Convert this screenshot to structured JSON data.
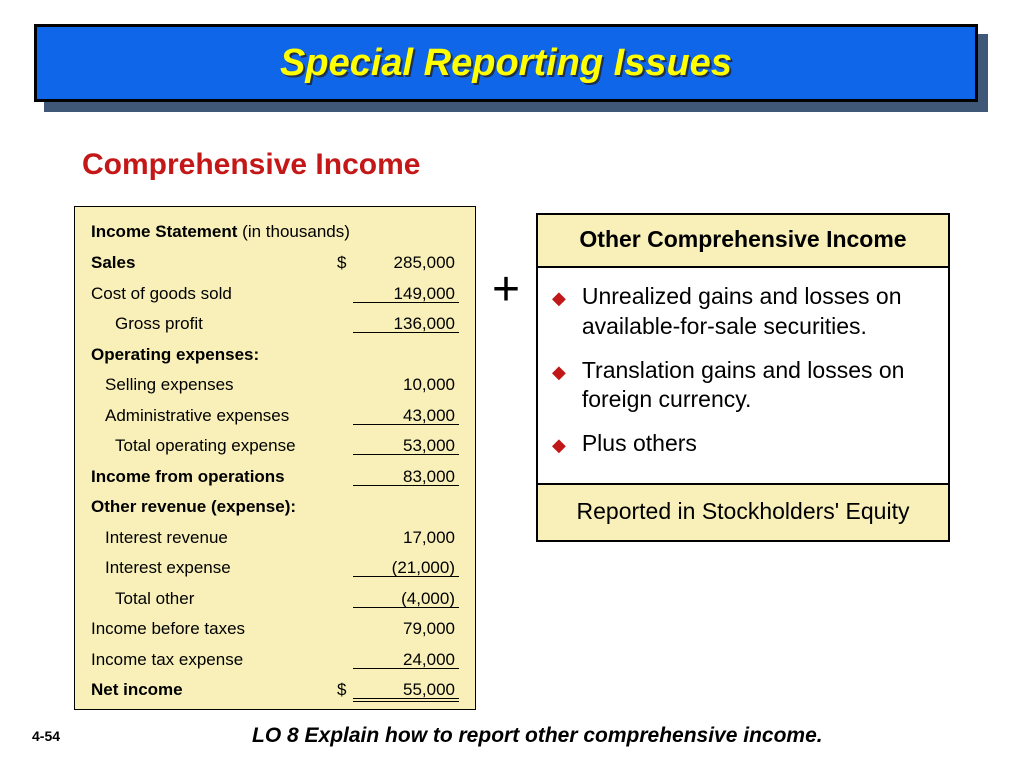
{
  "title": "Special Reporting Issues",
  "subtitle": "Comprehensive Income",
  "page_num": "4-54",
  "lo": "LO 8  Explain how to report other comprehensive income.",
  "plus": "+",
  "is": {
    "title_b": "Income Statement",
    "title_rest": " (in thousands)",
    "rows": [
      {
        "label": "Sales",
        "value": "285,000",
        "bold": true,
        "indent": 0,
        "dollar": true,
        "uline": false,
        "dline": false
      },
      {
        "label": "Cost of goods sold",
        "value": "149,000",
        "bold": false,
        "indent": 0,
        "dollar": false,
        "uline": true,
        "dline": false
      },
      {
        "label": "Gross profit",
        "value": "136,000",
        "bold": false,
        "indent": 2,
        "dollar": false,
        "uline": true,
        "dline": false
      },
      {
        "label": "Operating expenses:",
        "value": "",
        "bold": true,
        "indent": 0,
        "dollar": false,
        "uline": false,
        "dline": false
      },
      {
        "label": "Selling expenses",
        "value": "10,000",
        "bold": false,
        "indent": 1,
        "dollar": false,
        "uline": false,
        "dline": false
      },
      {
        "label": "Administrative expenses",
        "value": "43,000",
        "bold": false,
        "indent": 1,
        "dollar": false,
        "uline": true,
        "dline": false
      },
      {
        "label": "Total operating expense",
        "value": "53,000",
        "bold": false,
        "indent": 2,
        "dollar": false,
        "uline": true,
        "dline": false
      },
      {
        "label": "Income from operations",
        "value": "83,000",
        "bold": true,
        "indent": 0,
        "dollar": false,
        "uline": true,
        "dline": false
      },
      {
        "label": "Other revenue (expense):",
        "value": "",
        "bold": true,
        "indent": 0,
        "dollar": false,
        "uline": false,
        "dline": false
      },
      {
        "label": "Interest revenue",
        "value": "17,000",
        "bold": false,
        "indent": 1,
        "dollar": false,
        "uline": false,
        "dline": false
      },
      {
        "label": "Interest expense",
        "value": "(21,000)",
        "bold": false,
        "indent": 1,
        "dollar": false,
        "uline": true,
        "dline": false
      },
      {
        "label": "Total other",
        "value": "(4,000)",
        "bold": false,
        "indent": 2,
        "dollar": false,
        "uline": true,
        "dline": false
      },
      {
        "label": "Income before taxes",
        "value": "79,000",
        "bold": false,
        "indent": 0,
        "dollar": false,
        "uline": false,
        "dline": false
      },
      {
        "label": "Income tax expense",
        "value": "24,000",
        "bold": false,
        "indent": 0,
        "dollar": false,
        "uline": true,
        "dline": false
      },
      {
        "label": "Net income",
        "value": "55,000",
        "bold": true,
        "indent": 0,
        "dollar": true,
        "uline": false,
        "dline": true
      }
    ]
  },
  "oc": {
    "header": "Other Comprehensive Income",
    "bullets": [
      "Unrealized gains and losses on available-for-sale securities.",
      "Translation gains and losses on foreign currency.",
      "Plus others"
    ],
    "footer": "Reported in Stockholders' Equity"
  }
}
